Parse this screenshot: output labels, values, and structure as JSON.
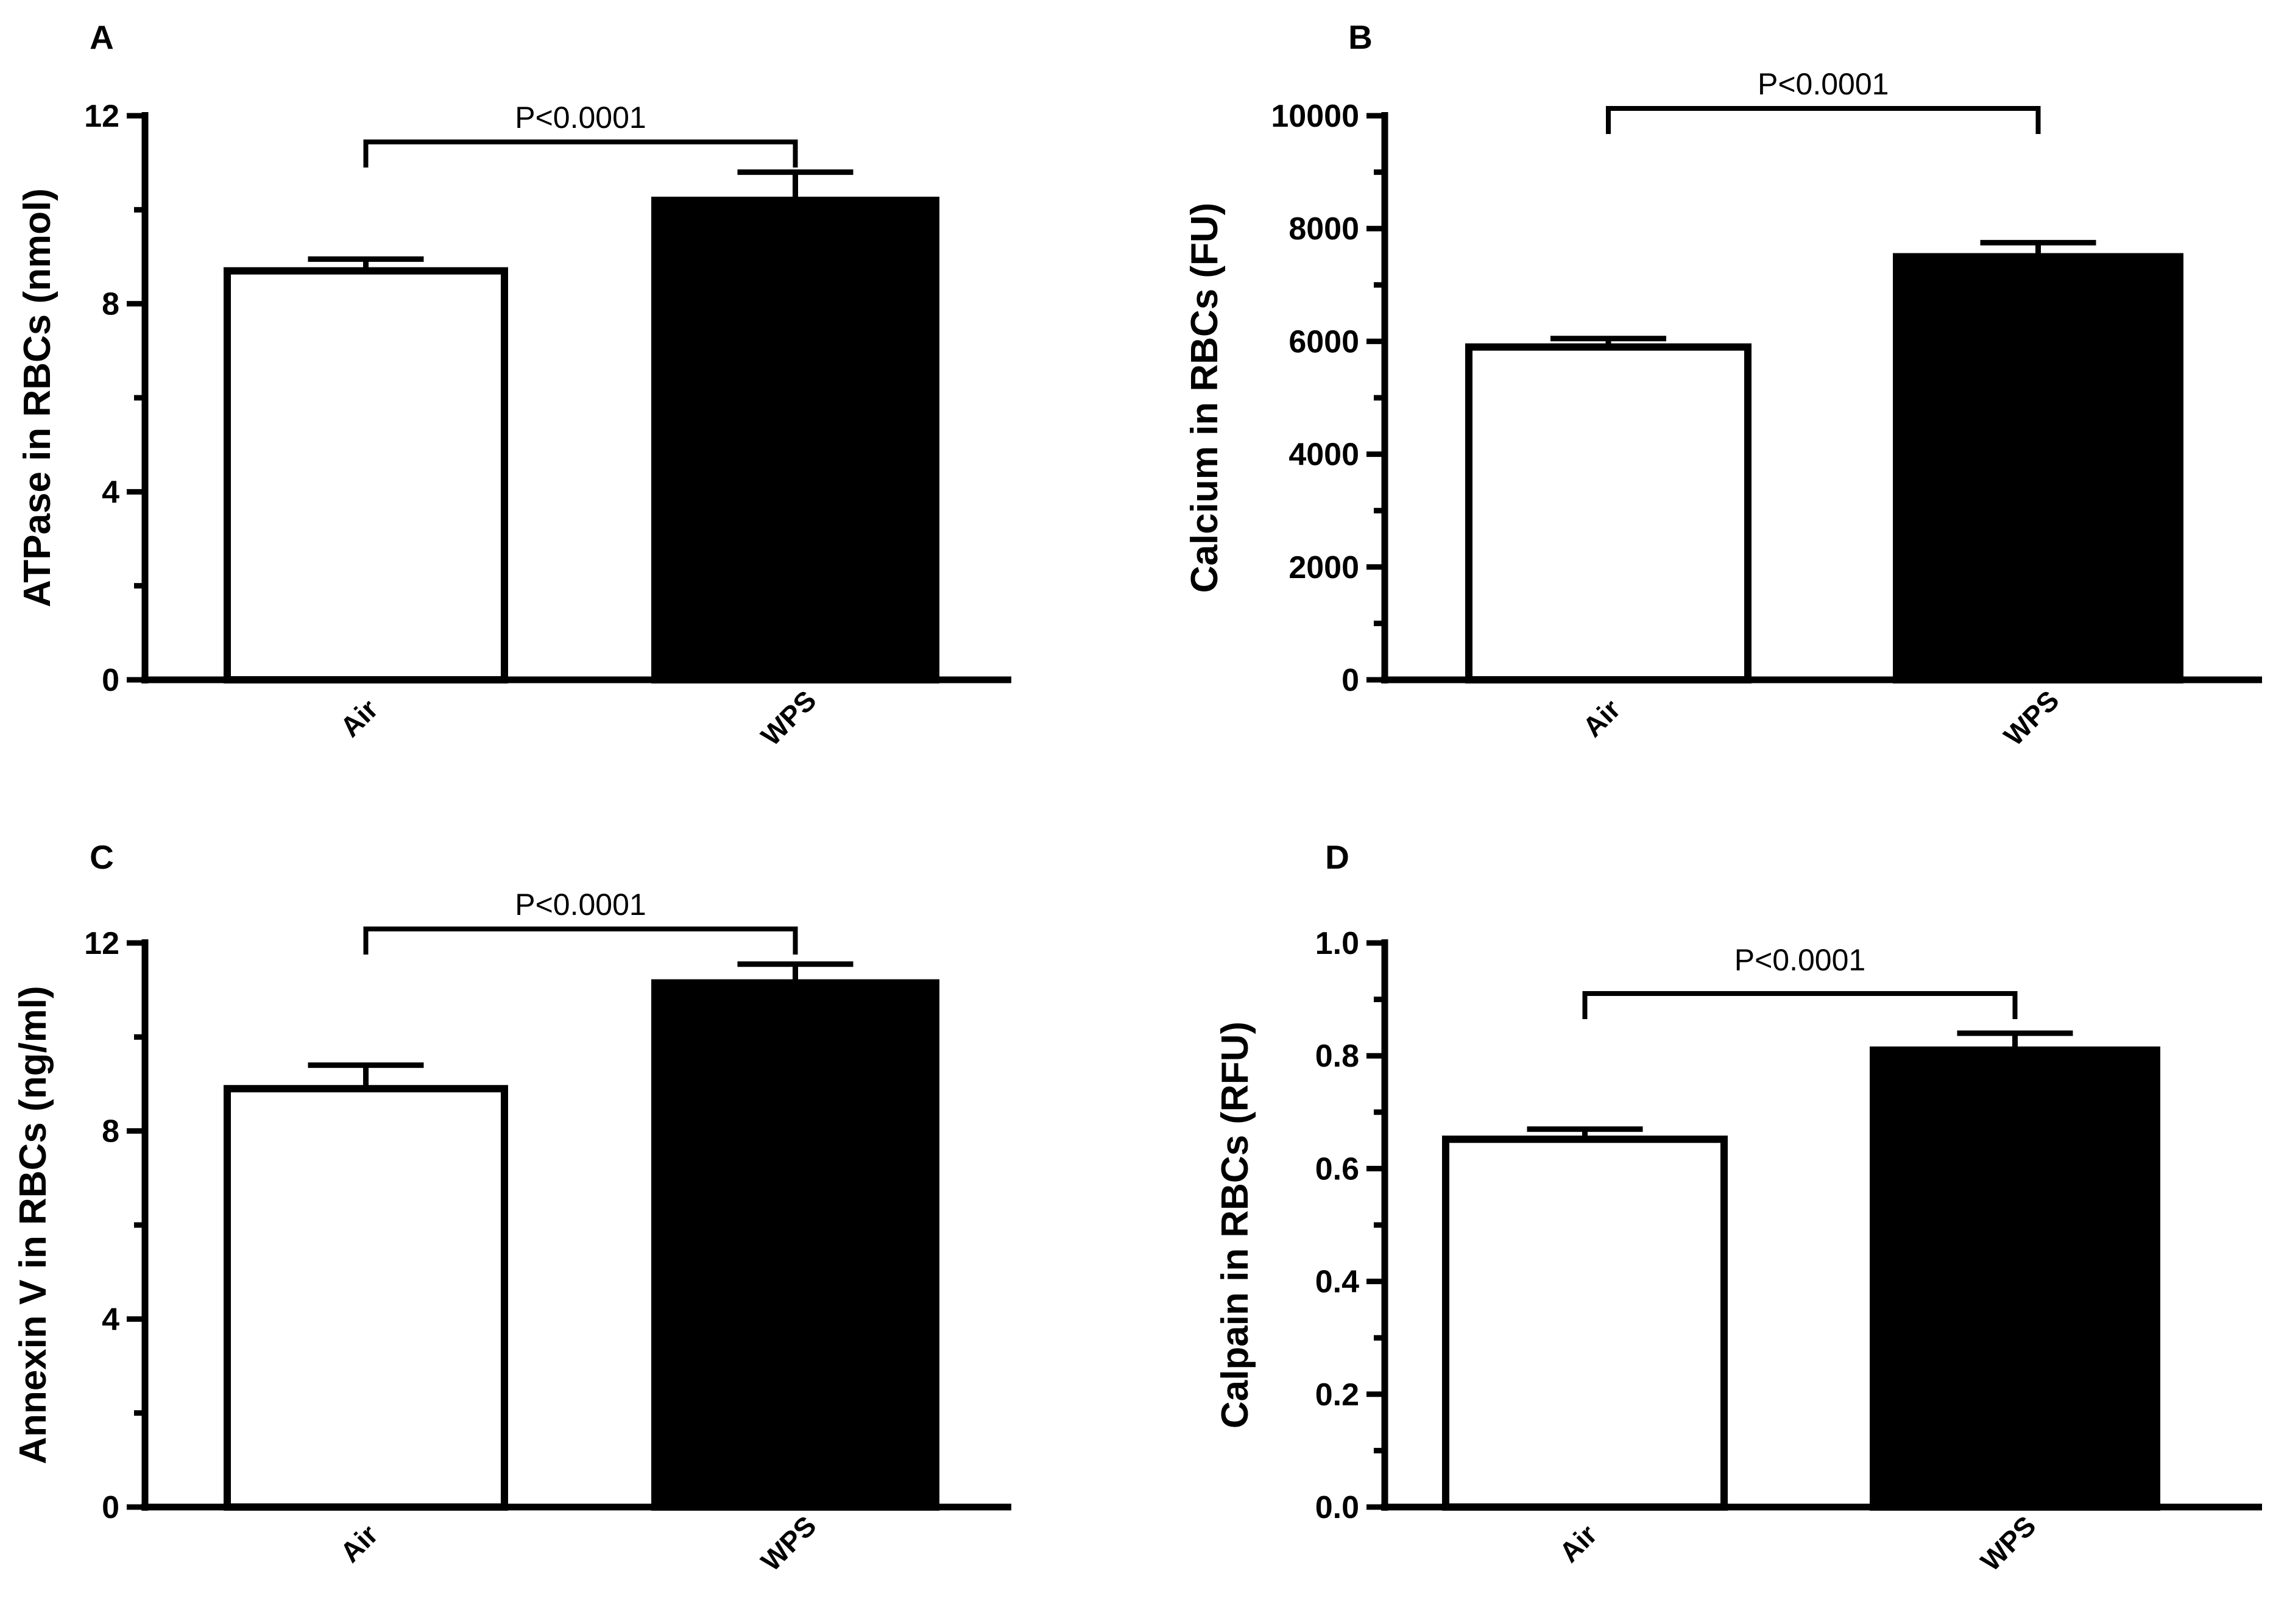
{
  "colors": {
    "air": "#ffffff",
    "wps": "#000000",
    "axis": "#000000"
  },
  "chart_data": [
    {
      "type": "bar",
      "panel": "A",
      "title": "",
      "xlabel": "",
      "ylabel": "ATPase in RBCs (nmol)",
      "categories": [
        "Air",
        "WPS"
      ],
      "values": [
        8.7,
        10.2
      ],
      "errors": [
        0.25,
        0.6
      ],
      "ylim": [
        0,
        12
      ],
      "yticks": [
        "0",
        "4",
        "8",
        "12"
      ],
      "significance": "P<0.0001"
    },
    {
      "type": "bar",
      "panel": "B",
      "title": "",
      "xlabel": "",
      "ylabel": "Calcium in RBCs (FU)",
      "categories": [
        "Air",
        "WPS"
      ],
      "values": [
        5900,
        7500
      ],
      "errors": [
        150,
        250
      ],
      "ylim": [
        0,
        10000
      ],
      "yticks": [
        "0",
        "2000",
        "4000",
        "6000",
        "8000",
        "10000"
      ],
      "significance": "P<0.0001"
    },
    {
      "type": "bar",
      "panel": "C",
      "title": "",
      "xlabel": "",
      "ylabel": "Annexin V in RBCs (ng/ml)",
      "categories": [
        "Air",
        "WPS"
      ],
      "values": [
        8.9,
        11.15
      ],
      "errors": [
        0.5,
        0.4
      ],
      "ylim": [
        0,
        12
      ],
      "yticks": [
        "0",
        "4",
        "8",
        "12"
      ],
      "significance": "P<0.0001"
    },
    {
      "type": "bar",
      "panel": "D",
      "title": "",
      "xlabel": "",
      "ylabel": "Calpain in RBCs (RFU)",
      "categories": [
        "Air",
        "WPS"
      ],
      "values": [
        0.652,
        0.81
      ],
      "errors": [
        0.018,
        0.03
      ],
      "ylim": [
        0,
        1.0
      ],
      "yticks": [
        "0.0",
        "0.2",
        "0.4",
        "0.6",
        "0.8",
        "1.0"
      ],
      "significance": "P<0.0001"
    }
  ]
}
